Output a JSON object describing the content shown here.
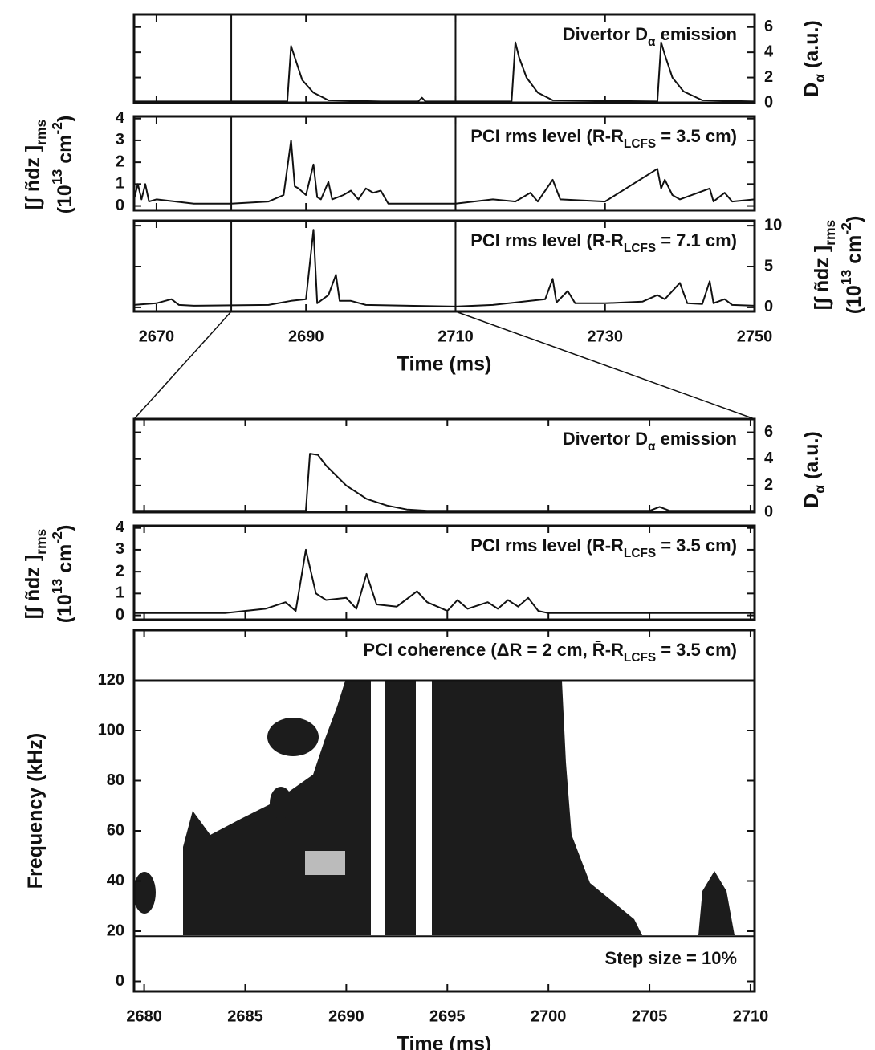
{
  "chart_data": [
    {
      "type": "line",
      "color": "#111",
      "annotation": [
        {
          "text": "Divertor D"
        },
        {
          "text": "α",
          "sub": true
        },
        {
          "text": " emission"
        }
      ],
      "ylabel": [
        [
          {
            "text": "D"
          },
          {
            "text": "α",
            "sub": true
          },
          {
            "text": " (a.u.)"
          }
        ]
      ],
      "xlim": [
        2667,
        2750
      ],
      "ylim": [
        0,
        7
      ],
      "yticks": [
        0,
        2,
        4,
        6
      ],
      "vlines": [
        2680,
        2710
      ],
      "x": [
        2667,
        2687.5,
        2688,
        2688.5,
        2689.5,
        2691,
        2693,
        2700,
        2705,
        2705.5,
        2706,
        2717.5,
        2718,
        2718.5,
        2719.5,
        2721,
        2723,
        2737,
        2737.5,
        2738,
        2739,
        2740.5,
        2743,
        2750
      ],
      "values": [
        0.1,
        0.1,
        4.5,
        3.6,
        1.8,
        0.8,
        0.2,
        0.1,
        0.1,
        0.4,
        0.1,
        0.1,
        4.8,
        3.6,
        2,
        0.8,
        0.2,
        0.1,
        4.8,
        3.8,
        2,
        0.9,
        0.2,
        0.1
      ]
    },
    {
      "type": "line",
      "color": "#111",
      "annotation": [
        {
          "text": "PCI rms level (R-R"
        },
        {
          "text": "LCFS",
          "sub": true
        },
        {
          "text": " = 3.5 cm)"
        }
      ],
      "ylabel": [
        [
          {
            "text": "[∫ ñdz ]"
          },
          {
            "text": "rms",
            "sub": true
          }
        ],
        [
          {
            "text": "(10"
          },
          {
            "text": "13",
            "sup": true
          },
          {
            "text": " cm"
          },
          {
            "text": "-2",
            "sup": true
          },
          {
            "text": ")"
          }
        ]
      ],
      "xlim": [
        2667,
        2750
      ],
      "ylim": [
        -0.2,
        4.1
      ],
      "yticks": [
        0,
        1,
        2,
        3,
        4
      ],
      "vlines": [
        2680,
        2710
      ],
      "x": [
        2667,
        2667.5,
        2668,
        2668.5,
        2669,
        2670,
        2675,
        2680,
        2685,
        2687,
        2688,
        2688.5,
        2689,
        2690,
        2691,
        2691.5,
        2692,
        2693,
        2693.5,
        2695,
        2696,
        2697,
        2698,
        2699,
        2700,
        2701,
        2710,
        2715,
        2718,
        2720,
        2721,
        2723,
        2724,
        2730,
        2737,
        2737.5,
        2738,
        2739,
        2740,
        2744,
        2744.5,
        2746,
        2747,
        2750
      ],
      "values": [
        0.3,
        1.0,
        0.3,
        1.0,
        0.2,
        0.3,
        0.1,
        0.1,
        0.2,
        0.5,
        3.0,
        0.9,
        0.8,
        0.5,
        1.9,
        0.4,
        0.3,
        1.1,
        0.3,
        0.5,
        0.7,
        0.3,
        0.8,
        0.6,
        0.7,
        0.1,
        0.1,
        0.3,
        0.2,
        0.6,
        0.2,
        1.2,
        0.3,
        0.2,
        1.7,
        0.8,
        1.2,
        0.5,
        0.3,
        0.8,
        0.2,
        0.6,
        0.2,
        0.3
      ]
    },
    {
      "type": "line",
      "color": "#111",
      "annotation": [
        {
          "text": "PCI rms level (R-R"
        },
        {
          "text": "LCFS",
          "sub": true
        },
        {
          "text": " = 7.1 cm)"
        }
      ],
      "ylabel": [
        [
          {
            "text": "[∫ ñdz ]"
          },
          {
            "text": "rms",
            "sub": true
          }
        ],
        [
          {
            "text": "(10"
          },
          {
            "text": "13",
            "sup": true
          },
          {
            "text": " cm"
          },
          {
            "text": "-2",
            "sup": true
          },
          {
            "text": ")"
          }
        ]
      ],
      "xlabel": "Time (ms)",
      "xlim": [
        2667,
        2750
      ],
      "xticks": [
        2670,
        2690,
        2710,
        2730,
        2750
      ],
      "ylim": [
        -0.5,
        10.6
      ],
      "yticks": [
        0,
        5,
        10
      ],
      "vlines": [
        2680,
        2710
      ],
      "x": [
        2667,
        2670,
        2672,
        2673,
        2675,
        2685,
        2688,
        2690,
        2691,
        2691.5,
        2693,
        2694,
        2694.5,
        2696,
        2698,
        2710,
        2715,
        2720,
        2722,
        2723,
        2723.5,
        2725,
        2726,
        2730,
        2735,
        2737,
        2738,
        2740,
        2741,
        2743,
        2744,
        2744.5,
        2746,
        2747,
        2750
      ],
      "values": [
        0.3,
        0.5,
        1.0,
        0.3,
        0.2,
        0.3,
        0.8,
        1.0,
        9.5,
        0.5,
        1.5,
        4.0,
        0.8,
        0.8,
        0.3,
        0.1,
        0.3,
        0.8,
        1.0,
        3.5,
        0.6,
        2.0,
        0.5,
        0.5,
        0.7,
        1.5,
        1.0,
        3.0,
        0.5,
        0.4,
        3.2,
        0.5,
        1.0,
        0.3,
        0.2
      ]
    },
    {
      "type": "line",
      "color": "#111",
      "annotation": [
        {
          "text": "Divertor D"
        },
        {
          "text": "α",
          "sub": true
        },
        {
          "text": " emission"
        }
      ],
      "ylabel": [
        [
          {
            "text": "D"
          },
          {
            "text": "α",
            "sub": true
          },
          {
            "text": " (a.u.)"
          }
        ]
      ],
      "xlim": [
        2679.5,
        2710.2
      ],
      "ylim": [
        0,
        7
      ],
      "yticks": [
        0,
        2,
        4,
        6
      ],
      "x": [
        2679.5,
        2688,
        2688.2,
        2688.6,
        2689,
        2690,
        2691,
        2692,
        2693,
        2694,
        2705,
        2705.5,
        2706,
        2710.2
      ],
      "values": [
        0.1,
        0.1,
        4.4,
        4.3,
        3.5,
        2.0,
        1.0,
        0.5,
        0.2,
        0.1,
        0.1,
        0.4,
        0.1,
        0.1
      ]
    },
    {
      "type": "line",
      "color": "#111",
      "annotation": [
        {
          "text": "PCI rms level (R-R"
        },
        {
          "text": "LCFS",
          "sub": true
        },
        {
          "text": " = 3.5 cm)"
        }
      ],
      "ylabel": [
        [
          {
            "text": "[∫ ñdz ]"
          },
          {
            "text": "rms",
            "sub": true
          }
        ],
        [
          {
            "text": "(10"
          },
          {
            "text": "13",
            "sup": true
          },
          {
            "text": " cm"
          },
          {
            "text": "-2",
            "sup": true
          },
          {
            "text": ")"
          }
        ]
      ],
      "xlim": [
        2679.5,
        2710.2
      ],
      "ylim": [
        -0.2,
        4.1
      ],
      "yticks": [
        0,
        1,
        2,
        3,
        4
      ],
      "x": [
        2679.5,
        2684,
        2686,
        2687,
        2687.5,
        2688,
        2688.5,
        2689,
        2690,
        2690.5,
        2691,
        2691.5,
        2692.5,
        2693.5,
        2694,
        2695,
        2695.5,
        2696,
        2697,
        2697.5,
        2698,
        2698.5,
        2699,
        2699.5,
        2700,
        2710.2
      ],
      "values": [
        0.1,
        0.1,
        0.3,
        0.6,
        0.2,
        3.0,
        1.0,
        0.7,
        0.8,
        0.3,
        1.9,
        0.5,
        0.4,
        1.1,
        0.6,
        0.2,
        0.7,
        0.3,
        0.6,
        0.3,
        0.7,
        0.4,
        0.8,
        0.2,
        0.1,
        0.1
      ]
    },
    {
      "type": "coherence",
      "annotation": [
        {
          "text": "PCI coherence (ΔR = 2 cm, R̄-R"
        },
        {
          "text": "LCFS",
          "sub": true
        },
        {
          "text": " = 3.5 cm)"
        }
      ],
      "note": "Step size = 10%",
      "ylabel": [
        [
          {
            "text": "Frequency (kHz)"
          }
        ]
      ],
      "xlabel": "Time (ms)",
      "xlim": [
        2679.5,
        2710.2
      ],
      "xticks": [
        2680,
        2685,
        2690,
        2695,
        2700,
        2705,
        2710
      ],
      "ylim": [
        -4,
        140
      ],
      "yticks": [
        0,
        20,
        40,
        60,
        80,
        100,
        120
      ],
      "hlines": [
        120,
        18
      ]
    }
  ]
}
